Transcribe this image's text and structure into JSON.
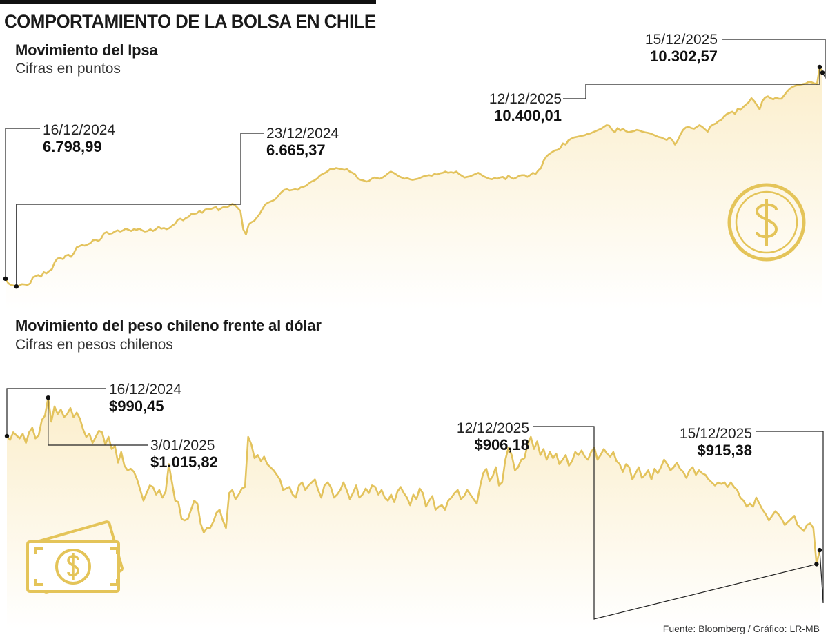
{
  "title": "COMPORTAMIENTO DE LA BOLSA EN CHILE",
  "source": "Fuente: Bloomberg / Gráfico: LR-MB",
  "colors": {
    "line": "#e3c35d",
    "fill_top": "#fbeecb",
    "fill_bottom": "#ffffff",
    "icon": "#e4c459",
    "leader": "#222222",
    "topbar": "#111111"
  },
  "icons": {
    "ipsa": "dollar-coin-icon",
    "peso": "banknote-icon"
  },
  "chart_data": [
    {
      "type": "area",
      "title": "Movimiento del Ipsa",
      "unit": "Cifras en puntos",
      "xlabel": "",
      "ylabel": "",
      "x_range": [
        "16/12/2024",
        "15/12/2025"
      ],
      "ylim": [
        6350,
        10600
      ],
      "grid": false,
      "annotations": [
        {
          "date": "16/12/2024",
          "value": "6.798,99"
        },
        {
          "date": "23/12/2024",
          "value": "6.665,37"
        },
        {
          "date": "12/12/2025",
          "value": "10.400,01"
        },
        {
          "date": "15/12/2025",
          "value": "10.302,57"
        }
      ],
      "values": [
        6799,
        6720,
        6690,
        6680,
        6665,
        6680,
        6705,
        6700,
        6690,
        6715,
        6820,
        6840,
        6860,
        6830,
        6910,
        6890,
        6930,
        6960,
        7080,
        7140,
        7150,
        7130,
        7190,
        7205,
        7170,
        7230,
        7330,
        7350,
        7370,
        7360,
        7380,
        7400,
        7450,
        7460,
        7440,
        7480,
        7570,
        7590,
        7560,
        7570,
        7600,
        7620,
        7600,
        7620,
        7650,
        7630,
        7610,
        7640,
        7630,
        7650,
        7620,
        7600,
        7610,
        7640,
        7610,
        7640,
        7680,
        7650,
        7660,
        7640,
        7660,
        7700,
        7730,
        7800,
        7820,
        7790,
        7830,
        7850,
        7900,
        7900,
        7910,
        7950,
        7920,
        7970,
        7990,
        7980,
        8000,
        8020,
        7960,
        8000,
        8020,
        8010,
        8040,
        8070,
        8050,
        8000,
        7950,
        7640,
        7550,
        7720,
        7760,
        7780,
        7840,
        7900,
        7980,
        8060,
        8090,
        8110,
        8130,
        8160,
        8220,
        8270,
        8310,
        8320,
        8300,
        8310,
        8320,
        8310,
        8350,
        8360,
        8380,
        8420,
        8450,
        8470,
        8500,
        8550,
        8580,
        8600,
        8630,
        8670,
        8660,
        8680,
        8670,
        8660,
        8650,
        8660,
        8620,
        8600,
        8570,
        8500,
        8480,
        8470,
        8450,
        8460,
        8500,
        8520,
        8510,
        8500,
        8520,
        8550,
        8590,
        8620,
        8600,
        8570,
        8540,
        8520,
        8500,
        8510,
        8490,
        8480,
        8490,
        8500,
        8520,
        8540,
        8550,
        8560,
        8550,
        8580,
        8570,
        8590,
        8600,
        8620,
        8600,
        8610,
        8600,
        8620,
        8580,
        8550,
        8520,
        8530,
        8540,
        8560,
        8580,
        8600,
        8570,
        8540,
        8520,
        8500,
        8490,
        8510,
        8500,
        8520,
        8530,
        8490,
        8550,
        8520,
        8500,
        8520,
        8550,
        8560,
        8560,
        8530,
        8560,
        8600,
        8580,
        8640,
        8680,
        8810,
        8880,
        8920,
        8950,
        8980,
        8990,
        9020,
        9100,
        9080,
        9150,
        9180,
        9200,
        9210,
        9220,
        9230,
        9240,
        9260,
        9270,
        9290,
        9310,
        9330,
        9350,
        9380,
        9410,
        9400,
        9330,
        9290,
        9360,
        9320,
        9350,
        9310,
        9290,
        9300,
        9310,
        9330,
        9320,
        9300,
        9290,
        9280,
        9270,
        9250,
        9230,
        9210,
        9200,
        9180,
        9160,
        9200,
        9160,
        9080,
        9150,
        9250,
        9330,
        9370,
        9380,
        9360,
        9350,
        9380,
        9410,
        9380,
        9340,
        9300,
        9390,
        9420,
        9440,
        9480,
        9500,
        9560,
        9600,
        9620,
        9640,
        9600,
        9690,
        9670,
        9720,
        9760,
        9800,
        9870,
        9820,
        9750,
        9680,
        9820,
        9880,
        9900,
        9870,
        9850,
        9880,
        9860,
        9860,
        9920,
        9980,
        10030,
        10060,
        10080,
        10090,
        10100,
        10110,
        10120,
        10150,
        10140,
        10120,
        10110,
        10400,
        10303
      ]
    },
    {
      "type": "area",
      "title": "Movimiento del peso chileno frente al dólar",
      "unit": "Cifras en pesos chilenos",
      "xlabel": "",
      "ylabel": "",
      "x_range": [
        "16/12/2024",
        "15/12/2025"
      ],
      "ylim": [
        870,
        1025
      ],
      "grid": false,
      "annotations": [
        {
          "date": "16/12/2024",
          "value": "$990,45"
        },
        {
          "date": "3/01/2025",
          "value": "$1.015,82"
        },
        {
          "date": "12/12/2025",
          "value": "$906,18"
        },
        {
          "date": "15/12/2025",
          "value": "$915,38"
        }
      ],
      "values": [
        990.5,
        988,
        993,
        991,
        989,
        992,
        986,
        993,
        996,
        989,
        991,
        1001,
        1004,
        1015.8,
        1000,
        1010,
        1005,
        1008,
        1003,
        1005,
        1009,
        1003,
        1006,
        1002,
        995,
        990,
        992,
        986,
        990,
        994,
        993,
        985,
        990,
        982,
        984,
        973,
        980,
        971,
        968,
        969,
        967,
        962,
        955,
        948,
        953,
        958,
        957,
        952,
        955,
        950,
        954,
        972,
        960,
        948,
        947,
        936,
        935,
        936,
        942,
        948,
        946,
        933,
        927,
        930,
        930,
        934,
        940,
        942,
        935,
        930,
        953,
        955,
        949,
        952,
        956,
        957,
        990,
        985,
        976,
        978,
        974,
        977,
        972,
        970,
        968,
        965,
        962,
        955,
        956,
        957,
        952,
        950,
        958,
        960,
        955,
        958,
        960,
        962,
        955,
        950,
        958,
        960,
        957,
        950,
        952,
        955,
        960,
        955,
        949,
        953,
        958,
        950,
        952,
        956,
        953,
        958,
        957,
        952,
        955,
        950,
        948,
        952,
        947,
        954,
        957,
        953,
        950,
        945,
        952,
        949,
        956,
        953,
        944,
        948,
        951,
        942,
        944,
        945,
        942,
        948,
        950,
        953,
        955,
        949,
        951,
        955,
        952,
        949,
        946,
        957,
        966,
        969,
        961,
        964,
        970,
        958,
        960,
        975,
        983,
        978,
        968,
        970,
        975,
        976,
        985,
        990,
        982,
        987,
        978,
        982,
        975,
        980,
        976,
        979,
        972,
        975,
        978,
        971,
        974,
        980,
        978,
        981,
        977,
        975,
        980,
        983,
        975,
        978,
        982,
        979,
        977,
        980,
        974,
        972,
        967,
        972,
        970,
        962,
        966,
        970,
        963,
        965,
        968,
        962,
        969,
        966,
        970,
        975,
        972,
        968,
        970,
        973,
        969,
        967,
        963,
        968,
        970,
        965,
        968,
        966,
        965,
        962,
        960,
        958,
        960,
        959,
        960,
        957,
        960,
        957,
        955,
        950,
        948,
        944,
        946,
        944,
        950,
        946,
        942,
        939,
        935,
        938,
        941,
        939,
        936,
        932,
        934,
        936,
        938,
        932,
        930,
        928,
        932,
        933,
        930,
        906.2,
        915.4
      ]
    }
  ]
}
